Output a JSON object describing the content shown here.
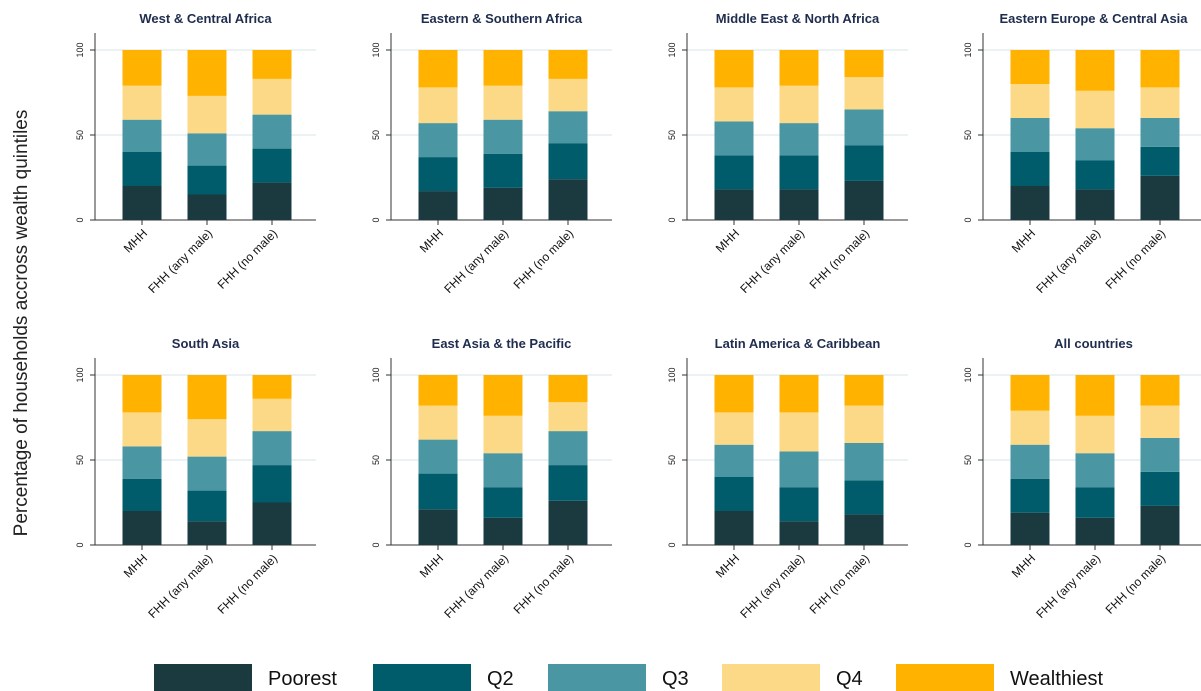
{
  "ylabel": "Percentage of households accross wealth quintiles",
  "legend": {
    "entries": [
      {
        "name": "Poorest",
        "color": "#1a3a40"
      },
      {
        "name": "Q2",
        "color": "#005b6a"
      },
      {
        "name": "Q3",
        "color": "#4a96a3"
      },
      {
        "name": "Q4",
        "color": "#fcd986"
      },
      {
        "name": "Wealthiest",
        "color": "#ffb300"
      }
    ]
  },
  "chart_data": [
    {
      "type": "bar",
      "stacked": true,
      "title": "West & Central Africa",
      "categories": [
        "MHH",
        "FHH (any male)",
        "FHH (no male)"
      ],
      "yticks": [
        0,
        50,
        100
      ],
      "ylim": [
        0,
        110
      ],
      "series": [
        {
          "name": "Poorest",
          "values": [
            20,
            15,
            22
          ]
        },
        {
          "name": "Q2",
          "values": [
            20,
            17,
            20
          ]
        },
        {
          "name": "Q3",
          "values": [
            19,
            19,
            20
          ]
        },
        {
          "name": "Q4",
          "values": [
            20,
            22,
            21
          ]
        },
        {
          "name": "Wealthiest",
          "values": [
            21,
            27,
            17
          ]
        }
      ]
    },
    {
      "type": "bar",
      "stacked": true,
      "title": "Eastern & Southern Africa",
      "categories": [
        "MHH",
        "FHH (any male)",
        "FHH (no male)"
      ],
      "yticks": [
        0,
        50,
        100
      ],
      "ylim": [
        0,
        110
      ],
      "series": [
        {
          "name": "Poorest",
          "values": [
            17,
            19,
            24
          ]
        },
        {
          "name": "Q2",
          "values": [
            20,
            20,
            21
          ]
        },
        {
          "name": "Q3",
          "values": [
            20,
            20,
            19
          ]
        },
        {
          "name": "Q4",
          "values": [
            21,
            20,
            19
          ]
        },
        {
          "name": "Wealthiest",
          "values": [
            22,
            21,
            17
          ]
        }
      ]
    },
    {
      "type": "bar",
      "stacked": true,
      "title": "Middle East & North Africa",
      "categories": [
        "MHH",
        "FHH (any male)",
        "FHH (no male)"
      ],
      "yticks": [
        0,
        50,
        100
      ],
      "ylim": [
        0,
        110
      ],
      "series": [
        {
          "name": "Poorest",
          "values": [
            18,
            18,
            23
          ]
        },
        {
          "name": "Q2",
          "values": [
            20,
            20,
            21
          ]
        },
        {
          "name": "Q3",
          "values": [
            20,
            19,
            21
          ]
        },
        {
          "name": "Q4",
          "values": [
            20,
            22,
            19
          ]
        },
        {
          "name": "Wealthiest",
          "values": [
            22,
            21,
            16
          ]
        }
      ]
    },
    {
      "type": "bar",
      "stacked": true,
      "title": "Eastern Europe & Central Asia",
      "categories": [
        "MHH",
        "FHH (any male)",
        "FHH (no male)"
      ],
      "yticks": [
        0,
        50,
        100
      ],
      "ylim": [
        0,
        110
      ],
      "series": [
        {
          "name": "Poorest",
          "values": [
            20,
            18,
            26
          ]
        },
        {
          "name": "Q2",
          "values": [
            20,
            17,
            17
          ]
        },
        {
          "name": "Q3",
          "values": [
            20,
            19,
            17
          ]
        },
        {
          "name": "Q4",
          "values": [
            20,
            22,
            18
          ]
        },
        {
          "name": "Wealthiest",
          "values": [
            20,
            24,
            22
          ]
        }
      ]
    },
    {
      "type": "bar",
      "stacked": true,
      "title": "South Asia",
      "categories": [
        "MHH",
        "FHH (any male)",
        "FHH (no male)"
      ],
      "yticks": [
        0,
        50,
        100
      ],
      "ylim": [
        0,
        110
      ],
      "series": [
        {
          "name": "Poorest",
          "values": [
            20,
            14,
            25
          ]
        },
        {
          "name": "Q2",
          "values": [
            19,
            18,
            22
          ]
        },
        {
          "name": "Q3",
          "values": [
            19,
            20,
            20
          ]
        },
        {
          "name": "Q4",
          "values": [
            20,
            22,
            19
          ]
        },
        {
          "name": "Wealthiest",
          "values": [
            22,
            26,
            14
          ]
        }
      ]
    },
    {
      "type": "bar",
      "stacked": true,
      "title": "East Asia & the Pacific",
      "categories": [
        "MHH",
        "FHH (any male)",
        "FHH (no male)"
      ],
      "yticks": [
        0,
        50,
        100
      ],
      "ylim": [
        0,
        110
      ],
      "series": [
        {
          "name": "Poorest",
          "values": [
            21,
            16,
            26
          ]
        },
        {
          "name": "Q2",
          "values": [
            21,
            18,
            21
          ]
        },
        {
          "name": "Q3",
          "values": [
            20,
            20,
            20
          ]
        },
        {
          "name": "Q4",
          "values": [
            20,
            22,
            17
          ]
        },
        {
          "name": "Wealthiest",
          "values": [
            18,
            24,
            16
          ]
        }
      ]
    },
    {
      "type": "bar",
      "stacked": true,
      "title": "Latin America & Caribbean",
      "categories": [
        "MHH",
        "FHH (any male)",
        "FHH (no male)"
      ],
      "yticks": [
        0,
        50,
        100
      ],
      "ylim": [
        0,
        110
      ],
      "series": [
        {
          "name": "Poorest",
          "values": [
            20,
            14,
            18
          ]
        },
        {
          "name": "Q2",
          "values": [
            20,
            20,
            20
          ]
        },
        {
          "name": "Q3",
          "values": [
            19,
            21,
            22
          ]
        },
        {
          "name": "Q4",
          "values": [
            19,
            23,
            22
          ]
        },
        {
          "name": "Wealthiest",
          "values": [
            22,
            22,
            18
          ]
        }
      ]
    },
    {
      "type": "bar",
      "stacked": true,
      "title": "All countries",
      "categories": [
        "MHH",
        "FHH (any male)",
        "FHH (no male)"
      ],
      "yticks": [
        0,
        50,
        100
      ],
      "ylim": [
        0,
        110
      ],
      "series": [
        {
          "name": "Poorest",
          "values": [
            19,
            16,
            23
          ]
        },
        {
          "name": "Q2",
          "values": [
            20,
            18,
            20
          ]
        },
        {
          "name": "Q3",
          "values": [
            20,
            20,
            20
          ]
        },
        {
          "name": "Q4",
          "values": [
            20,
            22,
            19
          ]
        },
        {
          "name": "Wealthiest",
          "values": [
            21,
            24,
            18
          ]
        }
      ]
    }
  ]
}
